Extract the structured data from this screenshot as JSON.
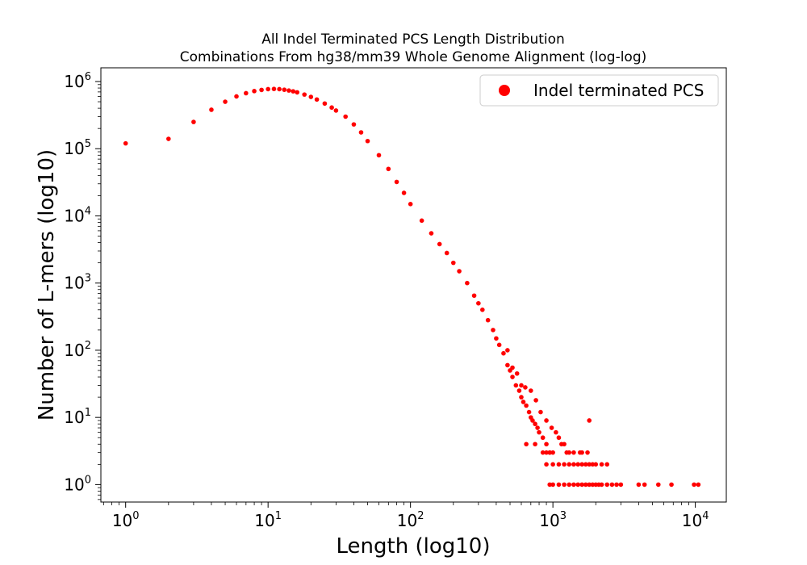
{
  "chart_data": {
    "type": "scatter",
    "title": "All Indel Terminated PCS Length Distribution",
    "subtitle": "Combinations From hg38/mm39 Whole Genome Alignment (log-log)",
    "xlabel": "Length (log10)",
    "ylabel": "Number of L-mers (log10)",
    "xscale": "log",
    "yscale": "log",
    "xlim": [
      0.67,
      16500
    ],
    "ylim": [
      0.55,
      1600000
    ],
    "x_ticks": [
      {
        "base": "10",
        "exp": "0",
        "value": 1
      },
      {
        "base": "10",
        "exp": "1",
        "value": 10
      },
      {
        "base": "10",
        "exp": "2",
        "value": 100
      },
      {
        "base": "10",
        "exp": "3",
        "value": 1000
      },
      {
        "base": "10",
        "exp": "4",
        "value": 10000
      }
    ],
    "y_ticks": [
      {
        "base": "10",
        "exp": "0",
        "value": 1
      },
      {
        "base": "10",
        "exp": "1",
        "value": 10
      },
      {
        "base": "10",
        "exp": "2",
        "value": 100
      },
      {
        "base": "10",
        "exp": "3",
        "value": 1000
      },
      {
        "base": "10",
        "exp": "4",
        "value": 10000
      },
      {
        "base": "10",
        "exp": "5",
        "value": 100000
      },
      {
        "base": "10",
        "exp": "6",
        "value": 1000000
      }
    ],
    "grid": false,
    "legend": {
      "position": "top-right",
      "entries": [
        "Indel terminated PCS"
      ]
    },
    "series": [
      {
        "name": "Indel terminated PCS",
        "color": "#ff0000",
        "points": [
          [
            1,
            120000
          ],
          [
            2,
            140000
          ],
          [
            3,
            250000
          ],
          [
            4,
            380000
          ],
          [
            5,
            500000
          ],
          [
            6,
            600000
          ],
          [
            7,
            670000
          ],
          [
            8,
            720000
          ],
          [
            9,
            750000
          ],
          [
            10,
            770000
          ],
          [
            11,
            775000
          ],
          [
            12,
            770000
          ],
          [
            13,
            755000
          ],
          [
            14,
            735000
          ],
          [
            15,
            715000
          ],
          [
            16,
            690000
          ],
          [
            18,
            640000
          ],
          [
            20,
            590000
          ],
          [
            22,
            540000
          ],
          [
            25,
            470000
          ],
          [
            28,
            410000
          ],
          [
            30,
            370000
          ],
          [
            35,
            300000
          ],
          [
            40,
            230000
          ],
          [
            45,
            175000
          ],
          [
            50,
            130000
          ],
          [
            60,
            80000
          ],
          [
            70,
            50000
          ],
          [
            80,
            32000
          ],
          [
            90,
            22000
          ],
          [
            100,
            15000
          ],
          [
            120,
            8500
          ],
          [
            140,
            5500
          ],
          [
            160,
            3800
          ],
          [
            180,
            2800
          ],
          [
            200,
            2000
          ],
          [
            220,
            1500
          ],
          [
            250,
            1000
          ],
          [
            280,
            650
          ],
          [
            300,
            500
          ],
          [
            320,
            400
          ],
          [
            350,
            280
          ],
          [
            380,
            200
          ],
          [
            400,
            150
          ],
          [
            420,
            120
          ],
          [
            450,
            90
          ],
          [
            480,
            60
          ],
          [
            500,
            50
          ],
          [
            520,
            40
          ],
          [
            550,
            30
          ],
          [
            580,
            25
          ],
          [
            600,
            20
          ],
          [
            620,
            17
          ],
          [
            650,
            15
          ],
          [
            680,
            12
          ],
          [
            700,
            10
          ],
          [
            720,
            9
          ],
          [
            750,
            8
          ],
          [
            780,
            7
          ],
          [
            800,
            6
          ],
          [
            850,
            5
          ],
          [
            900,
            4
          ],
          [
            950,
            3
          ],
          [
            1000,
            3
          ],
          [
            480,
            100
          ],
          [
            520,
            55
          ],
          [
            560,
            45
          ],
          [
            600,
            30
          ],
          [
            640,
            28
          ],
          [
            700,
            25
          ],
          [
            760,
            18
          ],
          [
            820,
            12
          ],
          [
            900,
            9
          ],
          [
            980,
            7
          ],
          [
            1050,
            6
          ],
          [
            1100,
            5
          ],
          [
            1150,
            4
          ],
          [
            1250,
            3
          ],
          [
            1300,
            3
          ],
          [
            1800,
            9
          ],
          [
            1550,
            3
          ],
          [
            1750,
            3
          ],
          [
            650,
            4
          ],
          [
            750,
            4
          ],
          [
            850,
            3
          ],
          [
            900,
            3
          ],
          [
            950,
            3
          ],
          [
            1200,
            4
          ],
          [
            1400,
            3
          ],
          [
            1600,
            3
          ],
          [
            900,
            2
          ],
          [
            1000,
            2
          ],
          [
            1100,
            2
          ],
          [
            1200,
            2
          ],
          [
            1300,
            2
          ],
          [
            1400,
            2
          ],
          [
            1500,
            2
          ],
          [
            1600,
            2
          ],
          [
            1700,
            2
          ],
          [
            1800,
            2
          ],
          [
            1900,
            2
          ],
          [
            2000,
            2
          ],
          [
            2200,
            2
          ],
          [
            2400,
            2
          ],
          [
            950,
            1
          ],
          [
            1000,
            1
          ],
          [
            1100,
            1
          ],
          [
            1200,
            1
          ],
          [
            1300,
            1
          ],
          [
            1400,
            1
          ],
          [
            1500,
            1
          ],
          [
            1600,
            1
          ],
          [
            1700,
            1
          ],
          [
            1800,
            1
          ],
          [
            1900,
            1
          ],
          [
            2000,
            1
          ],
          [
            2100,
            1
          ],
          [
            2200,
            1
          ],
          [
            2400,
            1
          ],
          [
            2600,
            1
          ],
          [
            2800,
            1
          ],
          [
            3000,
            1
          ],
          [
            4000,
            1
          ],
          [
            4400,
            1
          ],
          [
            5500,
            1
          ],
          [
            6800,
            1
          ],
          [
            9800,
            1
          ],
          [
            10500,
            1
          ]
        ]
      }
    ]
  }
}
